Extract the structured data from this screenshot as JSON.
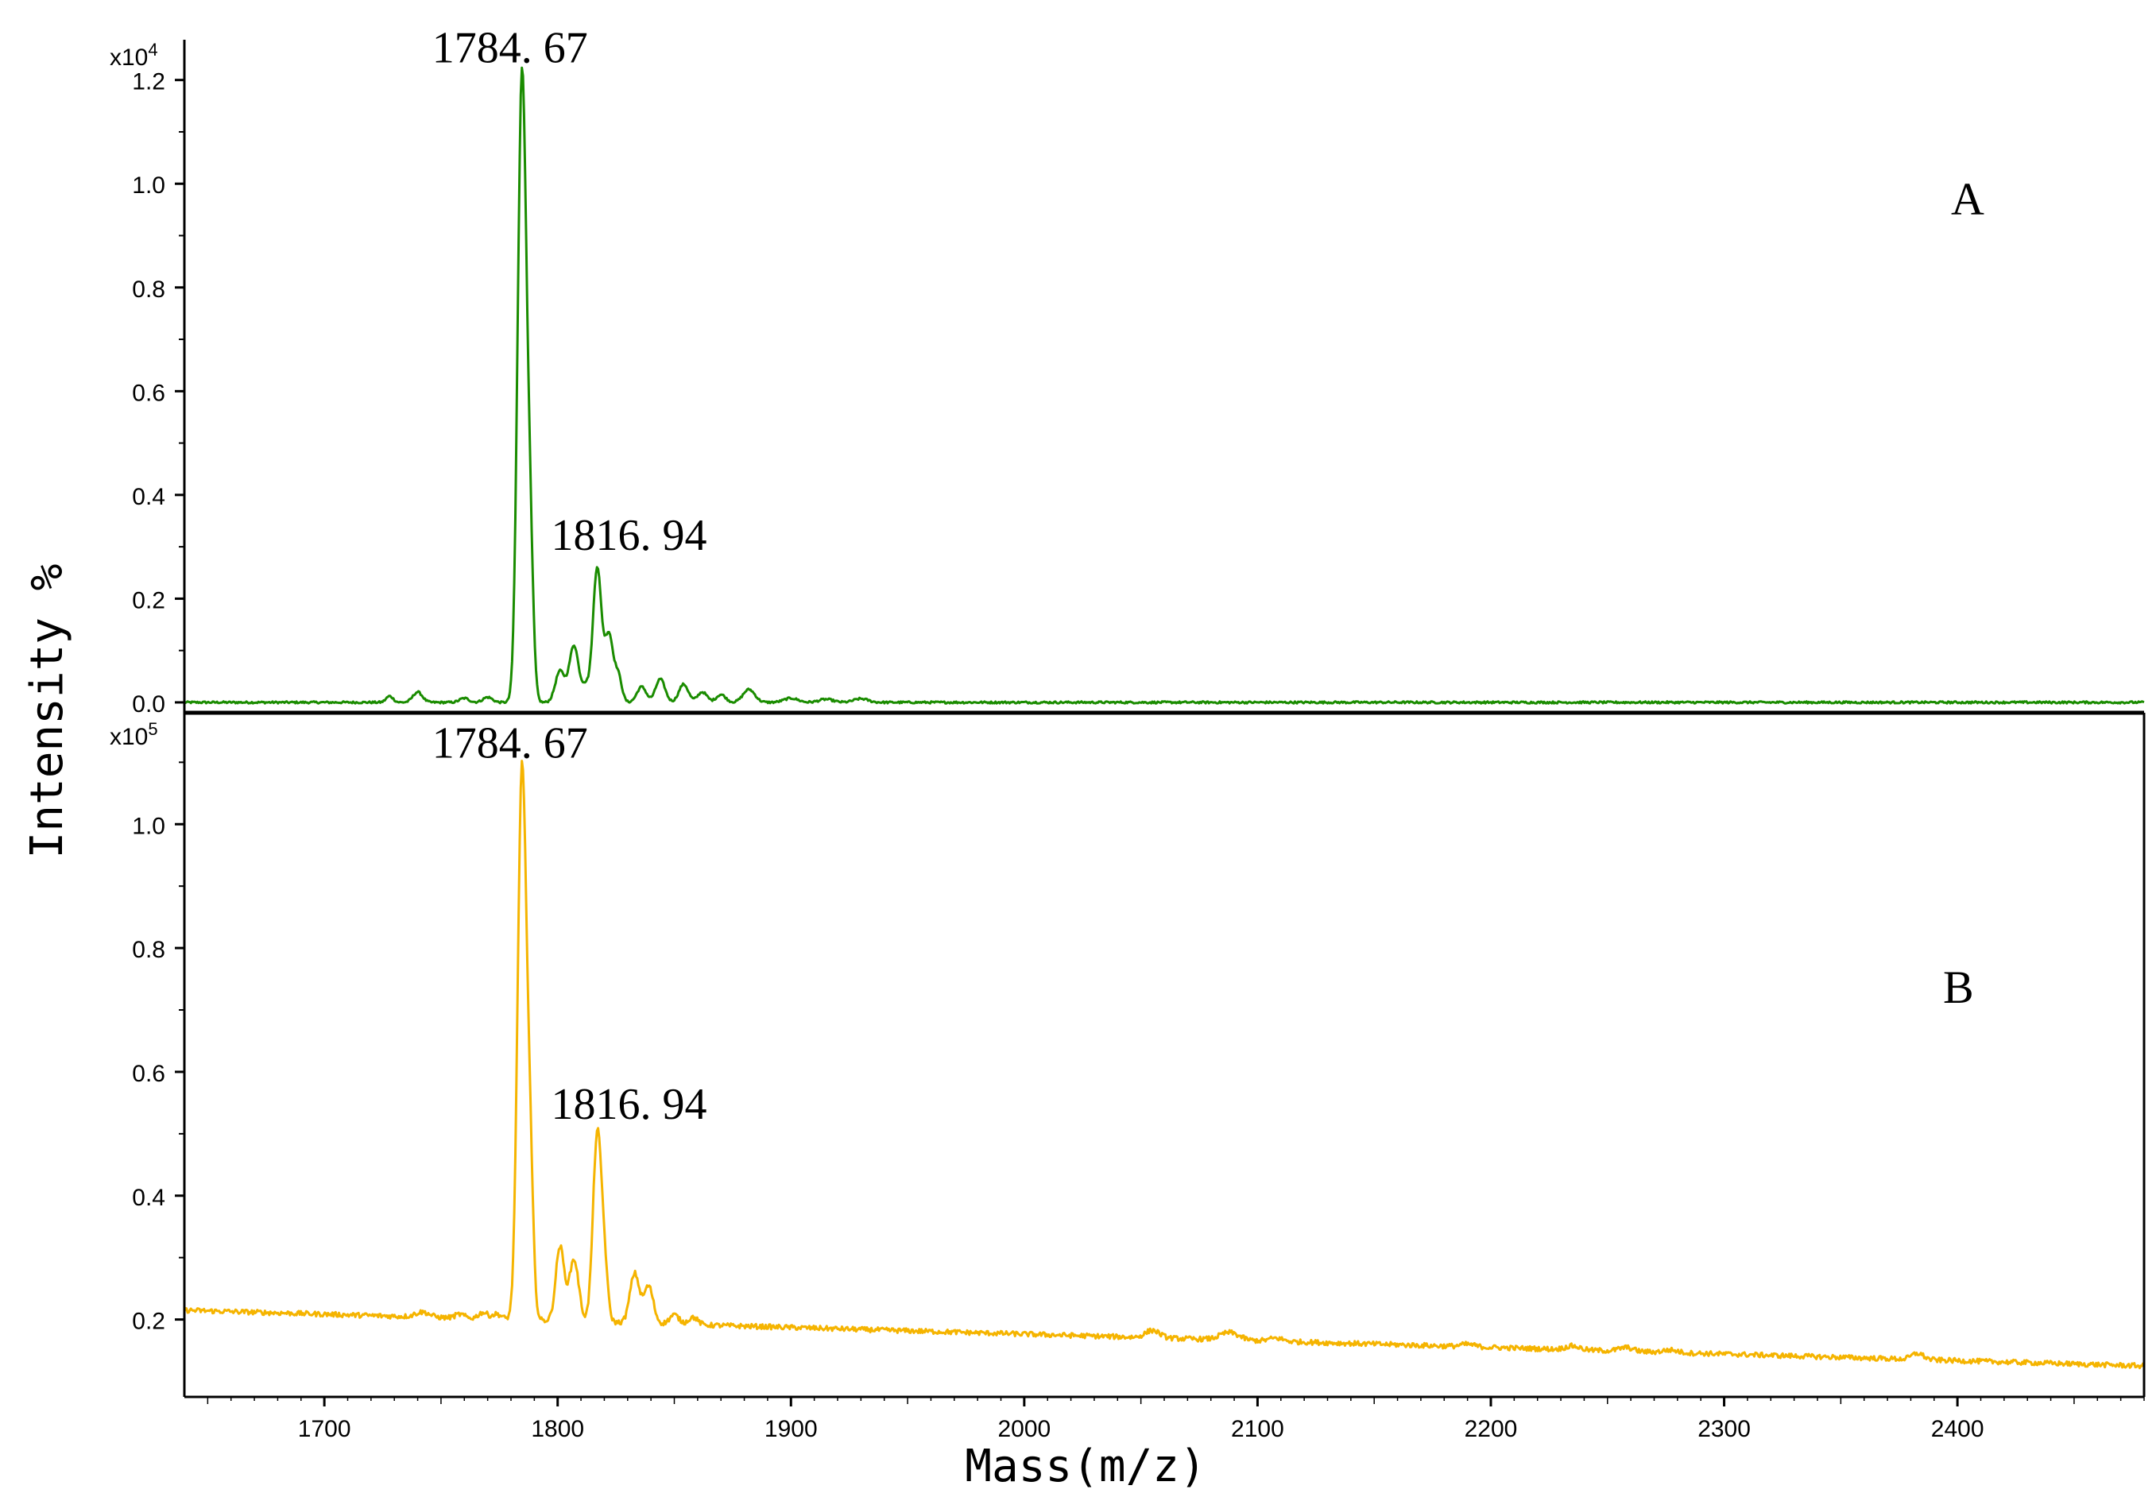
{
  "chart_data": {
    "type": "line",
    "xlabel": "Mass(m/z)",
    "ylabel": "Intensity %",
    "xlim": [
      1640,
      2480
    ],
    "x_ticks": [
      1700,
      1800,
      1900,
      2000,
      2100,
      2200,
      2300,
      2400
    ],
    "x_tick_labels": [
      "1700",
      "1800",
      "1900",
      "2000",
      "2100",
      "2200",
      "2300",
      "2400"
    ],
    "panels": [
      {
        "label": "A",
        "y_multiplier": "x10",
        "y_multiplier_exp": "4",
        "ylim": [
          -0.02,
          1.27
        ],
        "y_ticks": [
          0.0,
          0.2,
          0.4,
          0.6,
          0.8,
          1.0,
          1.2
        ],
        "y_tick_labels": [
          "0.0",
          "0.2",
          "0.4",
          "0.6",
          "0.8",
          "1.0",
          "1.2"
        ],
        "color": "#1a8c00",
        "series": {
          "baseline": 0.0,
          "peaks": [
            [
              1728,
              0.012,
              1.5
            ],
            [
              1740,
              0.02,
              2
            ],
            [
              1760,
              0.008,
              2
            ],
            [
              1770,
              0.01,
              2
            ],
            [
              1784.67,
              1.2,
              1.8
            ],
            [
              1788,
              0.3,
              1.5
            ],
            [
              1801,
              0.06,
              2
            ],
            [
              1807,
              0.11,
              2
            ],
            [
              1812,
              0.03,
              1.5
            ],
            [
              1816.94,
              0.26,
              1.8
            ],
            [
              1822,
              0.13,
              1.8
            ],
            [
              1826,
              0.05,
              1.5
            ],
            [
              1836,
              0.03,
              2
            ],
            [
              1844,
              0.045,
              2
            ],
            [
              1854,
              0.035,
              2
            ],
            [
              1862,
              0.02,
              2
            ],
            [
              1870,
              0.015,
              2
            ],
            [
              1882,
              0.025,
              2.5
            ],
            [
              1900,
              0.008,
              3
            ],
            [
              1915,
              0.006,
              3
            ],
            [
              1930,
              0.007,
              3
            ]
          ]
        },
        "annotations": [
          {
            "x": 1784.67,
            "text": "1784. 67"
          },
          {
            "x": 1816.94,
            "text": "1816. 94"
          }
        ]
      },
      {
        "label": "B",
        "y_multiplier": "x10",
        "y_multiplier_exp": "5",
        "ylim": [
          0.075,
          1.18
        ],
        "y_ticks": [
          0.2,
          0.4,
          0.6,
          0.8,
          1.0
        ],
        "y_tick_labels": [
          "0.2",
          "0.4",
          "0.6",
          "0.8",
          "1.0"
        ],
        "color": "#f5b400",
        "series": {
          "baseline_start": 0.215,
          "baseline_end": 0.125,
          "peaks": [
            [
              1742,
              0.008,
              3
            ],
            [
              1758,
              0.006,
              2
            ],
            [
              1768,
              0.01,
              2
            ],
            [
              1774,
              0.008,
              2
            ],
            [
              1784.67,
              0.88,
              1.8
            ],
            [
              1788,
              0.25,
              1.5
            ],
            [
              1801,
              0.12,
              1.8
            ],
            [
              1807,
              0.1,
              2
            ],
            [
              1816.94,
              0.3,
              1.8
            ],
            [
              1820,
              0.08,
              1.5
            ],
            [
              1833,
              0.08,
              2
            ],
            [
              1839,
              0.06,
              2
            ],
            [
              1850,
              0.015,
              2
            ],
            [
              1858,
              0.012,
              2
            ],
            [
              2055,
              0.012,
              3
            ],
            [
              2088,
              0.012,
              4
            ],
            [
              2108,
              0.005,
              3
            ],
            [
              2190,
              0.004,
              3
            ],
            [
              2235,
              0.006,
              3
            ],
            [
              2258,
              0.006,
              3
            ],
            [
              2277,
              0.004,
              3
            ],
            [
              2383,
              0.01,
              2.5
            ]
          ]
        },
        "annotations": [
          {
            "x": 1784.67,
            "text": "1784. 67"
          },
          {
            "x": 1816.94,
            "text": "1816. 94"
          }
        ]
      }
    ]
  }
}
